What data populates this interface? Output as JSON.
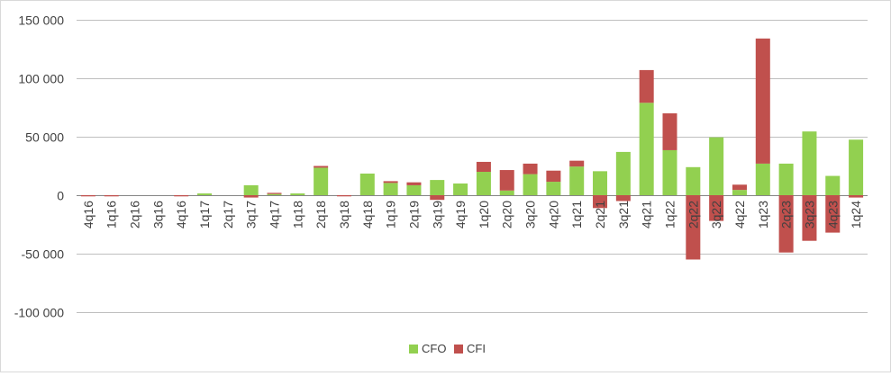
{
  "chart_data": {
    "type": "bar",
    "stacked": true,
    "categories": [
      "4q16",
      "1q16",
      "2q16",
      "3q16",
      "4q16",
      "1q17",
      "2q17",
      "3q17",
      "4q17",
      "1q18",
      "2q18",
      "3q18",
      "4q18",
      "1q19",
      "2q19",
      "3q19",
      "4q19",
      "1q20",
      "2q20",
      "3q20",
      "4q20",
      "1q21",
      "2q21",
      "3q21",
      "4q21",
      "1q22",
      "2q22",
      "3q22",
      "4q22",
      "1q23",
      "2q23",
      "3q23",
      "4q23",
      "1q24"
    ],
    "series": [
      {
        "name": "CFO",
        "color": "#92d050",
        "values": [
          0,
          0,
          0,
          0,
          0,
          1500,
          0,
          8500,
          1000,
          1500,
          23500,
          0,
          18500,
          10500,
          8500,
          13000,
          10000,
          20000,
          4000,
          18000,
          11500,
          24500,
          20500,
          37000,
          79000,
          38500,
          24000,
          49500,
          4500,
          27000,
          27000,
          54500,
          16500,
          47500
        ]
      },
      {
        "name": "CFI",
        "color": "#c0504d",
        "values": [
          -1000,
          -1000,
          0,
          0,
          -1000,
          0,
          0,
          -2000,
          1000,
          0,
          1500,
          -1000,
          0,
          1500,
          2500,
          -4000,
          0,
          8500,
          17500,
          9000,
          9500,
          5000,
          -11000,
          -5000,
          28000,
          31500,
          -55000,
          -22000,
          4500,
          107000,
          -49000,
          -39000,
          -32000,
          -2000
        ]
      }
    ],
    "yticks": [
      150000,
      100000,
      50000,
      0,
      -50000,
      -100000
    ],
    "ytick_labels": [
      "150 000",
      "100 000",
      "50 000",
      "0",
      "-50 000",
      "-100 000"
    ],
    "ylim": [
      -100000,
      150000
    ],
    "grid": true,
    "legend_position": "bottom"
  }
}
